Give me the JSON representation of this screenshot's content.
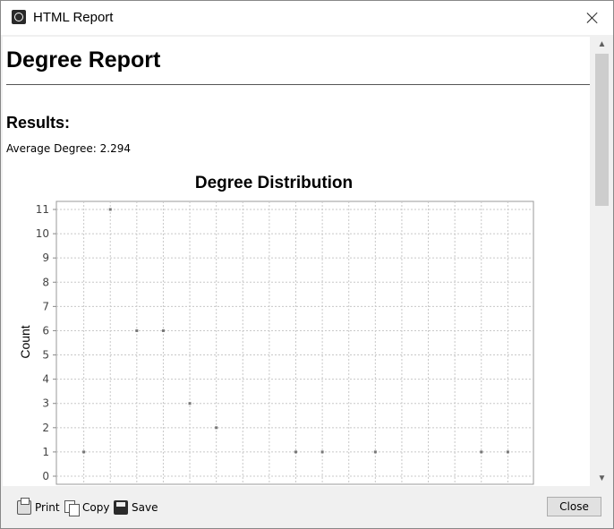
{
  "window": {
    "title": "HTML Report",
    "close_icon": "close-icon",
    "app_icon": "app-logo-icon"
  },
  "report": {
    "title": "Degree Report",
    "results_heading": "Results:",
    "average_degree_label": "Average Degree:",
    "average_degree_value": "2.294"
  },
  "chart_data": {
    "type": "scatter",
    "title": "Degree Distribution",
    "xlabel": "",
    "ylabel": "Count",
    "ylim": [
      0,
      11
    ],
    "yticks": [
      "0",
      "1",
      "2",
      "3",
      "4",
      "5",
      "6",
      "7",
      "8",
      "9",
      "10",
      "11"
    ],
    "points": [
      {
        "x": 1,
        "y": 1
      },
      {
        "x": 2,
        "y": 11
      },
      {
        "x": 3,
        "y": 6
      },
      {
        "x": 4,
        "y": 6
      },
      {
        "x": 5,
        "y": 3
      },
      {
        "x": 6,
        "y": 2
      },
      {
        "x": 9,
        "y": 1
      },
      {
        "x": 10,
        "y": 1
      },
      {
        "x": 12,
        "y": 1
      },
      {
        "x": 16,
        "y": 1
      },
      {
        "x": 17,
        "y": 1
      }
    ],
    "xlim": [
      0,
      18
    ],
    "grid": true,
    "colors": {
      "point": "#777777",
      "grid": "#c8c8c8",
      "plot_border": "#999999"
    }
  },
  "toolbar": {
    "print_label": "Print",
    "copy_label": "Copy",
    "save_label": "Save",
    "close_label": "Close"
  }
}
